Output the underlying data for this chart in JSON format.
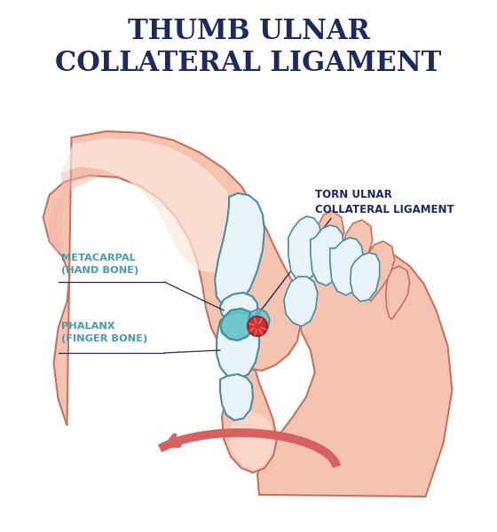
{
  "title_line1": "THUMB ULNAR",
  "title_line2": "COLLATERAL LIGAMENT",
  "title_color": "#1e2a5e",
  "title_fontsize": 22,
  "label_torn": "TORN ULNAR\nCOLLATERAL LIGAMENT",
  "label_metacarpal": "METACARPAL\n(HAND BONE)",
  "label_phalanx": "PHALANX\n(FINGER BONE)",
  "label_color_torn": "#1e2a5e",
  "label_color_side": "#4a9aae",
  "skin_light": "#fde8de",
  "skin_mid": "#f5c4b0",
  "skin_dark": "#e8a898",
  "skin_outline": "#c87060",
  "bone_fill": "#e8f4fa",
  "bone_outline": "#4a8ca0",
  "lig_fill": "#60c0c8",
  "lig_outline": "#3a8a94",
  "injury_fill": "#cc3333",
  "injury_outline": "#992222",
  "arrow_color": "#d96060",
  "bg_color": "#ffffff",
  "line_color": "#2a2a4a",
  "shadow_color": "#f0b8a8"
}
